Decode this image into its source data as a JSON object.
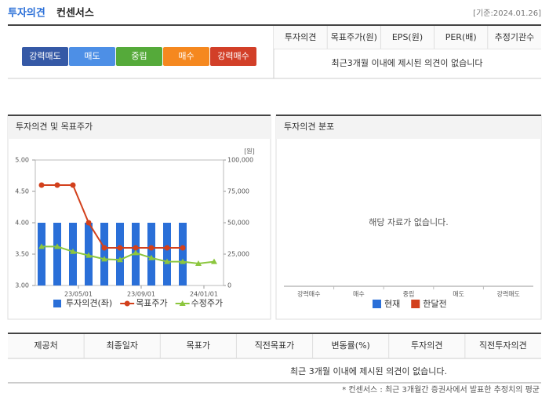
{
  "header": {
    "title": "투자의견",
    "subtitle": "컨센서스",
    "date": "[기준:2024.01.26]"
  },
  "opinion_scale": [
    {
      "label": "강력매도",
      "color": "#3559a6"
    },
    {
      "label": "매도",
      "color": "#4d8fe6"
    },
    {
      "label": "중립",
      "color": "#55aa3a"
    },
    {
      "label": "매수",
      "color": "#f5881f"
    },
    {
      "label": "강력매수",
      "color": "#d23f28"
    }
  ],
  "summary_table": {
    "headers": [
      "투자의견",
      "목표주가(원)",
      "EPS(원)",
      "PER(배)",
      "추정기관수"
    ],
    "message": "최근3개월 이내에 제시된 의견이 없습니다"
  },
  "chart_data": [
    {
      "type": "bar_line",
      "title": "투자의견 및 목표주가",
      "y2_label": "[원]",
      "categories": [
        null,
        null,
        null,
        null,
        null,
        null,
        null,
        null,
        null,
        null,
        null,
        null
      ],
      "xlim": [
        -0.4,
        11.6
      ],
      "xticks": [
        {
          "value": 2.35,
          "label": "23/05/01"
        },
        {
          "value": 6.35,
          "label": "23/09/01"
        },
        {
          "value": 10.35,
          "label": "24/01/01"
        }
      ],
      "ylim": [
        3,
        5
      ],
      "yticks": [
        {
          "value": 3,
          "label": "3.00"
        },
        {
          "value": 3.5,
          "label": "3.50"
        },
        {
          "value": 4,
          "label": "4.00"
        },
        {
          "value": 4.5,
          "label": "4.50"
        },
        {
          "value": 5,
          "label": "5.00"
        }
      ],
      "y2lim": [
        0,
        100000
      ],
      "y2ticks": [
        0,
        {
          "value": 25000,
          "label": "25,000"
        },
        {
          "value": 50000,
          "label": "50,000"
        },
        {
          "value": 75000,
          "label": "75,000"
        },
        {
          "value": 100000,
          "label": "100,000"
        }
      ],
      "series": [
        {
          "name": "투자의견(좌)",
          "type": "bar",
          "color": "#2a6fd8",
          "values": [
            4,
            4,
            4,
            4,
            4,
            4,
            4,
            4,
            4,
            4,
            null,
            null
          ]
        },
        {
          "name": "목표주가",
          "type": "line",
          "marker": "circle",
          "axis": "y2",
          "color": "#d2401c",
          "values": [
            80000,
            80000,
            80000,
            50000,
            30000,
            30000,
            30000,
            30000,
            30000,
            30000,
            null,
            null
          ]
        },
        {
          "name": "수정주가",
          "type": "line",
          "marker": "triangle",
          "axis": "y2",
          "color": "#8cc63e",
          "values": [
            31000,
            31000,
            27000,
            24000,
            21000,
            20500,
            26000,
            22000,
            19000,
            19000,
            17500,
            19000
          ]
        }
      ]
    },
    {
      "type": "bar",
      "title": "투자의견 분포",
      "annotation": "해당 자료가 없습니다.",
      "categories": [
        "강력매수",
        "매수",
        "중립",
        "매도",
        "강력매도"
      ],
      "series": [
        {
          "name": "현재",
          "color": "#2a6fd8",
          "values": [
            null,
            null,
            null,
            null,
            null
          ]
        },
        {
          "name": "한달전",
          "color": "#d2401c",
          "values": [
            null,
            null,
            null,
            null,
            null
          ]
        }
      ]
    }
  ],
  "opinions_table": {
    "headers": [
      "제공처",
      "최종일자",
      "목표가",
      "직전목표가",
      "변동률(%)",
      "투자의견",
      "직전투자의견"
    ],
    "message": "최근 3개월 이내에 제시된 의견이 없습니다."
  },
  "footnote": "* 컨센서스 : 최근 3개월간 증권사에서 발표한 추정치의 평균"
}
